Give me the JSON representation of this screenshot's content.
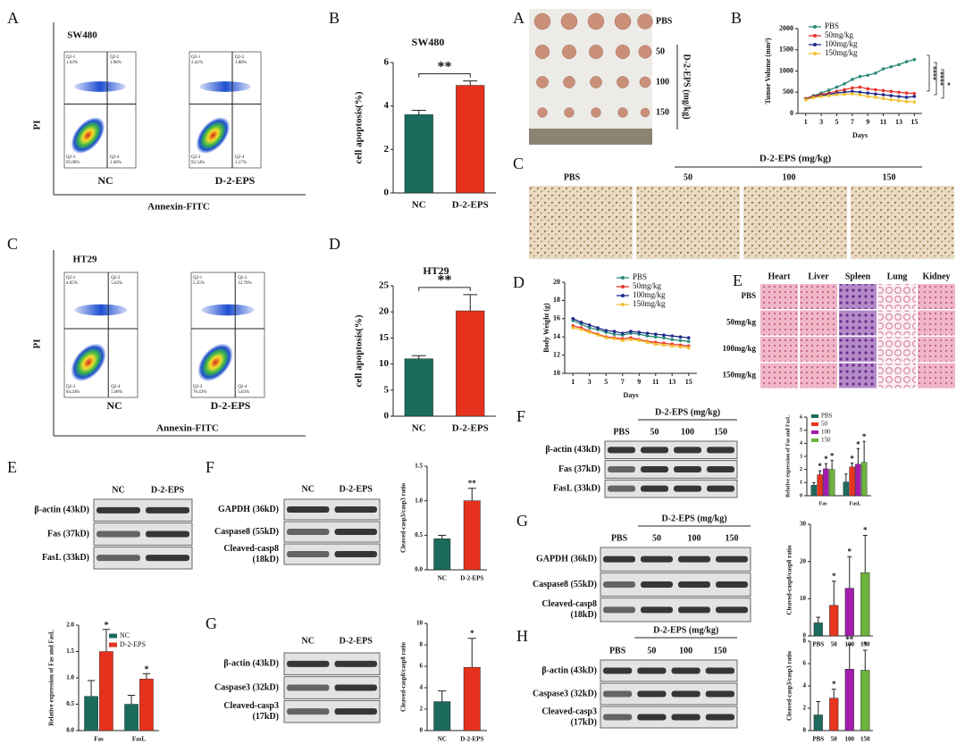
{
  "letters": [
    "A",
    "B",
    "C",
    "D",
    "E",
    "F",
    "G",
    "A",
    "B",
    "C",
    "D",
    "E",
    "F",
    "G",
    "H"
  ],
  "flow": [
    {
      "title": "SW480",
      "ylabel": "PI",
      "xlabel": "Annexin-FITC",
      "samples": [
        {
          "name": "NC",
          "quadrants": [
            {
              "label": "Q2-1",
              "value": "1.63%"
            },
            {
              "label": "Q2-2",
              "value": "1.98%"
            },
            {
              "label": "Q2-3",
              "value": "95.00%"
            },
            {
              "label": "Q2-4",
              "value": "1.40%"
            }
          ]
        },
        {
          "name": "D-2-EPS",
          "quadrants": [
            {
              "label": "Q2-1",
              "value": "2.42%"
            },
            {
              "label": "Q2-2",
              "value": "3.88%"
            },
            {
              "label": "Q2-3",
              "value": "92.54%"
            },
            {
              "label": "Q2-4",
              "value": "1.17%"
            }
          ]
        }
      ]
    },
    {
      "title": "HT29",
      "ylabel": "PI",
      "xlabel": "Annexin-FITC",
      "samples": [
        {
          "name": "NC",
          "quadrants": [
            {
              "label": "Q2-1",
              "value": "4.05%"
            },
            {
              "label": "Q2-2",
              "value": "5.62%"
            },
            {
              "label": "Q2-3",
              "value": "84.24%"
            },
            {
              "label": "Q2-4",
              "value": "5.90%"
            }
          ]
        },
        {
          "name": "D-2-EPS",
          "quadrants": [
            {
              "label": "Q2-1",
              "value": "5.25%"
            },
            {
              "label": "Q2-2",
              "value": "12.70%"
            },
            {
              "label": "Q2-3",
              "value": "76.43%"
            },
            {
              "label": "Q2-4",
              "value": "5.63%"
            }
          ]
        }
      ]
    }
  ],
  "tumor_photo": {
    "rows": [
      "PBS",
      "50",
      "100",
      "150"
    ],
    "axis_label": "D-2-EPS (mg/kg)"
  },
  "ihc": {
    "header": "D-2-EPS (mg/kg)",
    "columns": [
      "PBS",
      "50",
      "100",
      "150"
    ]
  },
  "he": {
    "columns": [
      "Heart",
      "Liver",
      "Spleen",
      "Lung",
      "Kidney"
    ],
    "rows": [
      "PBS",
      "50mg/kg",
      "100mg/kg",
      "150mg/kg"
    ]
  },
  "blots": [
    {
      "columns": [
        "NC",
        "D-2-EPS"
      ],
      "rows": [
        [
          "β-actin (43kD)"
        ],
        [
          "Fas (37kD)"
        ],
        [
          "FasL (33kD)"
        ]
      ]
    },
    {
      "columns": [
        "NC",
        "D-2-EPS"
      ],
      "rows": [
        [
          "GAPDH (36kD)"
        ],
        [
          "Caspase8 (55kD)"
        ],
        [
          "Cleaved-casp8",
          "(18kD)"
        ]
      ]
    },
    {
      "columns": [
        "NC",
        "D-2-EPS"
      ],
      "rows": [
        [
          "β-actin (43kD)"
        ],
        [
          "Caspase3 (32kD)"
        ],
        [
          "Cleaved-casp3",
          "(17kD)"
        ]
      ]
    },
    {
      "header": "D-2-EPS (mg/kg)",
      "columns": [
        "PBS",
        "50",
        "100",
        "150"
      ],
      "rows": [
        [
          "β-actin (43kD)"
        ],
        [
          "Fas (37kD)"
        ],
        [
          "FasL (33kD)"
        ]
      ]
    },
    {
      "header": "D-2-EPS (mg/kg)",
      "columns": [
        "PBS",
        "50",
        "100",
        "150"
      ],
      "rows": [
        [
          "GAPDH (36kD)"
        ],
        [
          "Caspase8 (55kD)"
        ],
        [
          "Cleaved-casp8",
          "(18kD)"
        ]
      ]
    },
    {
      "header": "D-2-EPS (mg/kg)",
      "columns": [
        "PBS",
        "50",
        "100",
        "150"
      ],
      "rows": [
        [
          "β-actin (43kD)"
        ],
        [
          "Caspase3 (32kD)"
        ],
        [
          "Cleaved-casp3",
          "(17kD)"
        ]
      ]
    }
  ],
  "chart_data": [
    {
      "type": "bar",
      "title": "SW480",
      "ylabel": "cell apoptosis(%)",
      "categories": [
        "NC",
        "D-2-EPS"
      ],
      "values": [
        3.6,
        4.95
      ],
      "errors": [
        0.2,
        0.2
      ],
      "colors": [
        "#1b6b5d",
        "#e6321c"
      ],
      "ylim": [
        0,
        6
      ],
      "yticks": [
        0,
        2,
        4,
        6
      ],
      "sig": "**"
    },
    {
      "type": "bar",
      "title": "HT29",
      "ylabel": "cell apoptosis(%)",
      "categories": [
        "NC",
        "D-2-EPS"
      ],
      "values": [
        11,
        20.2
      ],
      "errors": [
        0.6,
        3.1
      ],
      "colors": [
        "#1b6b5d",
        "#e6321c"
      ],
      "ylim": [
        0,
        25
      ],
      "yticks": [
        0,
        5,
        10,
        15,
        20,
        25
      ],
      "sig": "**"
    },
    {
      "type": "bar",
      "ylabel": "Cleaved-casp3/casp3 ratio",
      "categories": [
        "NC",
        "D-2-EPS"
      ],
      "values": [
        0.45,
        1.0
      ],
      "errors": [
        0.05,
        0.18
      ],
      "colors": [
        "#1b6b5d",
        "#e6321c"
      ],
      "ylim": [
        0,
        1.5
      ],
      "yticks": [
        {
          "value": 0,
          "label": "0.0"
        },
        {
          "value": 0.5,
          "label": "0.5"
        },
        {
          "value": 1,
          "label": "1.0"
        },
        {
          "value": 1.5,
          "label": "1.5"
        }
      ],
      "annotations": [
        null,
        "**"
      ]
    },
    {
      "type": "bar",
      "ylabel": "Cleaved-casp8/casp8 ratio",
      "categories": [
        "NC",
        "D-2-EPS"
      ],
      "values": [
        2.7,
        5.9
      ],
      "errors": [
        1.0,
        2.7
      ],
      "colors": [
        "#1b6b5d",
        "#e6321c"
      ],
      "ylim": [
        0,
        10
      ],
      "yticks": [
        0,
        2,
        4,
        6,
        8,
        10
      ],
      "annotations": [
        null,
        "*"
      ]
    },
    {
      "type": "grouped_bar",
      "ylabel": "Relative expression of Fas and FasL",
      "categories": [
        "Fas",
        "FasL"
      ],
      "series": [
        {
          "name": "NC",
          "color": "#1b6b5d",
          "values": [
            0.65,
            0.5
          ],
          "errors": [
            0.3,
            0.17
          ],
          "annotations": [
            null,
            null
          ]
        },
        {
          "name": "D-2-EPS",
          "color": "#e6321c",
          "values": [
            1.5,
            0.98
          ],
          "errors": [
            0.42,
            0.1
          ],
          "annotations": [
            "*",
            "*"
          ]
        }
      ],
      "ylim": [
        0,
        2
      ],
      "yticks": [
        {
          "value": 0,
          "label": "0.0"
        },
        {
          "value": 0.5,
          "label": "0.5"
        },
        {
          "value": 1,
          "label": "1.0"
        },
        {
          "value": 1.5,
          "label": "1.5"
        },
        {
          "value": 2,
          "label": "2.0"
        }
      ]
    },
    {
      "type": "line",
      "ylabel": "Tumor Volume (mm³)",
      "xlabel": "Days",
      "x": [
        1,
        2,
        3,
        4,
        5,
        6,
        7,
        8,
        9,
        10,
        11,
        12,
        13,
        14,
        15
      ],
      "series": [
        {
          "name": "PBS",
          "color": "#2a8a7a",
          "values": [
            350,
            420,
            480,
            550,
            620,
            700,
            800,
            870,
            900,
            950,
            1050,
            1100,
            1150,
            1220,
            1270
          ]
        },
        {
          "name": "50mg/kg",
          "color": "#e8352b",
          "values": [
            350,
            400,
            450,
            480,
            520,
            560,
            600,
            620,
            580,
            560,
            540,
            520,
            500,
            480,
            470
          ]
        },
        {
          "name": "100mg/kg",
          "color": "#1f2a8a",
          "values": [
            330,
            380,
            420,
            450,
            480,
            500,
            520,
            500,
            480,
            460,
            440,
            420,
            400,
            380,
            400
          ]
        },
        {
          "name": "150mg/kg",
          "color": "#f2c12e",
          "values": [
            320,
            370,
            400,
            420,
            440,
            450,
            460,
            440,
            400,
            380,
            350,
            320,
            300,
            280,
            270
          ]
        }
      ],
      "xlim": [
        0,
        16
      ],
      "xticks": [
        1,
        3,
        5,
        7,
        9,
        11,
        13,
        15
      ],
      "ylim": [
        0,
        2000
      ],
      "yticks": [
        0,
        500,
        1000,
        1500,
        2000
      ],
      "sig": [
        "****",
        "****",
        "*"
      ]
    },
    {
      "type": "line",
      "ylabel": "Body Weight (g)",
      "xlabel": "Days",
      "x": [
        1,
        2,
        3,
        4,
        5,
        6,
        7,
        8,
        9,
        10,
        11,
        12,
        13,
        14,
        15
      ],
      "series": [
        {
          "name": "PBS",
          "color": "#2a8a7a",
          "values": [
            15.8,
            15.4,
            15.0,
            14.8,
            14.5,
            14.3,
            14.2,
            14.4,
            14.3,
            14.1,
            14.0,
            13.9,
            13.7,
            13.6,
            13.5
          ]
        },
        {
          "name": "50mg/kg",
          "color": "#e8352b",
          "values": [
            15.2,
            15.0,
            14.6,
            14.3,
            14.0,
            13.9,
            13.8,
            13.9,
            13.7,
            13.5,
            13.4,
            13.3,
            13.2,
            13.1,
            13.0
          ]
        },
        {
          "name": "100mg/kg",
          "color": "#1f2a8a",
          "values": [
            16.0,
            15.6,
            15.3,
            15.0,
            14.7,
            14.6,
            14.4,
            14.6,
            14.5,
            14.4,
            14.3,
            14.2,
            14.1,
            14.0,
            13.9
          ]
        },
        {
          "name": "150mg/kg",
          "color": "#f2c12e",
          "values": [
            15.0,
            14.8,
            14.5,
            14.2,
            13.9,
            13.8,
            13.6,
            13.7,
            13.6,
            13.4,
            13.2,
            13.1,
            13.0,
            12.9,
            12.8
          ]
        }
      ],
      "xlim": [
        0,
        16
      ],
      "xticks": [
        1,
        3,
        5,
        7,
        9,
        11,
        13,
        15
      ],
      "ylim": [
        10,
        20
      ],
      "yticks": [
        10,
        12,
        14,
        16,
        18,
        20
      ]
    },
    {
      "type": "grouped_bar",
      "ylabel": "Relative expression of Fas and FasL",
      "categories": [
        "Fas",
        "FasL"
      ],
      "series": [
        {
          "name": "PBS",
          "color": "#1d6b5f",
          "values": [
            0.8,
            1.05
          ],
          "errors": [
            0.2,
            0.6
          ],
          "annotations": [
            null,
            null
          ]
        },
        {
          "name": "50",
          "color": "#e8351e",
          "values": [
            1.6,
            2.2
          ],
          "errors": [
            0.3,
            0.3
          ],
          "annotations": [
            "*",
            "*"
          ]
        },
        {
          "name": "100",
          "color": "#a21cae",
          "values": [
            2.05,
            2.4
          ],
          "errors": [
            0.4,
            1.2
          ],
          "annotations": [
            "*",
            "*"
          ]
        },
        {
          "name": "150",
          "color": "#6db33f",
          "values": [
            2.0,
            2.55
          ],
          "errors": [
            0.7,
            1.6
          ],
          "annotations": [
            "*",
            "*"
          ]
        }
      ],
      "ylim": [
        0,
        6
      ],
      "yticks": [
        0,
        1,
        2,
        3,
        4,
        5,
        6
      ]
    },
    {
      "type": "bar",
      "ylabel": "Cleaved-casp8/casp8 ratio",
      "categories": [
        "PBS",
        "50",
        "100",
        "150"
      ],
      "values": [
        3.5,
        8.2,
        12.8,
        17
      ],
      "errors": [
        1.5,
        6.5,
        8.5,
        10
      ],
      "colors": [
        "#1d6b5f",
        "#e8351e",
        "#a21cae",
        "#6db33f"
      ],
      "ylim": [
        0,
        30
      ],
      "yticks": [
        0,
        10,
        20,
        30
      ],
      "annotations": [
        null,
        "*",
        "*",
        "*"
      ]
    },
    {
      "type": "bar",
      "ylabel": "Cleaved-casp3/casp3 ratio",
      "categories": [
        "PBS",
        "50",
        "100",
        "150"
      ],
      "values": [
        1.4,
        2.9,
        5.5,
        5.4
      ],
      "errors": [
        1.2,
        0.8,
        2.2,
        1.8
      ],
      "colors": [
        "#1d6b5f",
        "#e8351e",
        "#a21cae",
        "#6db33f"
      ],
      "ylim": [
        0,
        8
      ],
      "yticks": [
        0,
        2,
        4,
        6,
        8
      ],
      "annotations": [
        null,
        "*",
        "**",
        "*"
      ]
    }
  ]
}
